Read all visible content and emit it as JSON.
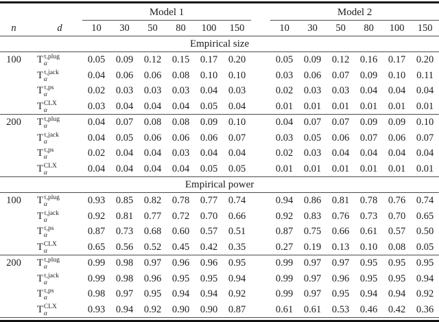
{
  "table": {
    "group_headers": [
      {
        "label": "Model 1"
      },
      {
        "label": "Model 2"
      }
    ],
    "col_headers": {
      "n": "n",
      "d": "d",
      "dims": [
        "10",
        "30",
        "50",
        "80",
        "100",
        "150"
      ]
    },
    "sections": [
      {
        "title": "Empirical size",
        "groups": [
          {
            "n": "100",
            "rows": [
              {
                "stat": {
                  "base": "T",
                  "sup": "τ,plug",
                  "sub": "α"
                },
                "m1": [
                  "0.05",
                  "0.09",
                  "0.12",
                  "0.15",
                  "0.17",
                  "0.20"
                ],
                "m2": [
                  "0.05",
                  "0.09",
                  "0.12",
                  "0.16",
                  "0.17",
                  "0.20"
                ]
              },
              {
                "stat": {
                  "base": "T",
                  "sup": "τ,jack",
                  "sub": "α"
                },
                "m1": [
                  "0.04",
                  "0.06",
                  "0.06",
                  "0.08",
                  "0.10",
                  "0.10"
                ],
                "m2": [
                  "0.03",
                  "0.06",
                  "0.07",
                  "0.09",
                  "0.10",
                  "0.11"
                ]
              },
              {
                "stat": {
                  "base": "T",
                  "sup": "τ,ps",
                  "sub": "α"
                },
                "m1": [
                  "0.02",
                  "0.03",
                  "0.03",
                  "0.03",
                  "0.04",
                  "0.03"
                ],
                "m2": [
                  "0.02",
                  "0.03",
                  "0.03",
                  "0.04",
                  "0.04",
                  "0.04"
                ]
              },
              {
                "stat": {
                  "base": "T",
                  "sup": "CLX",
                  "sub": "α"
                },
                "m1": [
                  "0.03",
                  "0.04",
                  "0.04",
                  "0.04",
                  "0.05",
                  "0.04"
                ],
                "m2": [
                  "0.01",
                  "0.01",
                  "0.01",
                  "0.01",
                  "0.01",
                  "0.01"
                ]
              }
            ]
          },
          {
            "n": "200",
            "rows": [
              {
                "stat": {
                  "base": "T",
                  "sup": "τ,plug",
                  "sub": "α"
                },
                "m1": [
                  "0.04",
                  "0.07",
                  "0.08",
                  "0.08",
                  "0.09",
                  "0.10"
                ],
                "m2": [
                  "0.04",
                  "0.07",
                  "0.07",
                  "0.09",
                  "0.09",
                  "0.10"
                ]
              },
              {
                "stat": {
                  "base": "T",
                  "sup": "τ,jack",
                  "sub": "α"
                },
                "m1": [
                  "0.04",
                  "0.05",
                  "0.06",
                  "0.06",
                  "0.06",
                  "0.07"
                ],
                "m2": [
                  "0.03",
                  "0.05",
                  "0.06",
                  "0.07",
                  "0.06",
                  "0.07"
                ]
              },
              {
                "stat": {
                  "base": "T",
                  "sup": "τ,ps",
                  "sub": "α"
                },
                "m1": [
                  "0.02",
                  "0.04",
                  "0.04",
                  "0.03",
                  "0.04",
                  "0.04"
                ],
                "m2": [
                  "0.02",
                  "0.03",
                  "0.04",
                  "0.04",
                  "0.04",
                  "0.04"
                ]
              },
              {
                "stat": {
                  "base": "T",
                  "sup": "CLX",
                  "sub": "α"
                },
                "m1": [
                  "0.04",
                  "0.04",
                  "0.04",
                  "0.04",
                  "0.05",
                  "0.05"
                ],
                "m2": [
                  "0.01",
                  "0.01",
                  "0.01",
                  "0.01",
                  "0.01",
                  "0.01"
                ]
              }
            ]
          }
        ]
      },
      {
        "title": "Empirical power",
        "groups": [
          {
            "n": "100",
            "rows": [
              {
                "stat": {
                  "base": "T",
                  "sup": "τ,plug",
                  "sub": "α"
                },
                "m1": [
                  "0.93",
                  "0.85",
                  "0.82",
                  "0.78",
                  "0.77",
                  "0.74"
                ],
                "m2": [
                  "0.94",
                  "0.86",
                  "0.81",
                  "0.78",
                  "0.76",
                  "0.74"
                ]
              },
              {
                "stat": {
                  "base": "T",
                  "sup": "τ,jack",
                  "sub": "α"
                },
                "m1": [
                  "0.92",
                  "0.81",
                  "0.77",
                  "0.72",
                  "0.70",
                  "0.66"
                ],
                "m2": [
                  "0.92",
                  "0.83",
                  "0.76",
                  "0.73",
                  "0.70",
                  "0.65"
                ]
              },
              {
                "stat": {
                  "base": "T",
                  "sup": "τ,ps",
                  "sub": "α"
                },
                "m1": [
                  "0.87",
                  "0.73",
                  "0.68",
                  "0.60",
                  "0.57",
                  "0.51"
                ],
                "m2": [
                  "0.87",
                  "0.75",
                  "0.66",
                  "0.61",
                  "0.57",
                  "0.50"
                ]
              },
              {
                "stat": {
                  "base": "T",
                  "sup": "CLX",
                  "sub": "α"
                },
                "m1": [
                  "0.65",
                  "0.56",
                  "0.52",
                  "0.45",
                  "0.42",
                  "0.35"
                ],
                "m2": [
                  "0.27",
                  "0.19",
                  "0.13",
                  "0.10",
                  "0.08",
                  "0.05"
                ]
              }
            ]
          },
          {
            "n": "200",
            "rows": [
              {
                "stat": {
                  "base": "T",
                  "sup": "τ,plug",
                  "sub": "α"
                },
                "m1": [
                  "0.99",
                  "0.98",
                  "0.97",
                  "0.96",
                  "0.96",
                  "0.95"
                ],
                "m2": [
                  "0.99",
                  "0.97",
                  "0.97",
                  "0.95",
                  "0.95",
                  "0.95"
                ]
              },
              {
                "stat": {
                  "base": "T",
                  "sup": "τ,jack",
                  "sub": "α"
                },
                "m1": [
                  "0.99",
                  "0.98",
                  "0.96",
                  "0.95",
                  "0.95",
                  "0.94"
                ],
                "m2": [
                  "0.99",
                  "0.97",
                  "0.96",
                  "0.95",
                  "0.95",
                  "0.94"
                ]
              },
              {
                "stat": {
                  "base": "T",
                  "sup": "τ,ps",
                  "sub": "α"
                },
                "m1": [
                  "0.98",
                  "0.97",
                  "0.95",
                  "0.94",
                  "0.94",
                  "0.92"
                ],
                "m2": [
                  "0.99",
                  "0.97",
                  "0.95",
                  "0.94",
                  "0.94",
                  "0.92"
                ]
              },
              {
                "stat": {
                  "base": "T",
                  "sup": "CLX",
                  "sub": "α"
                },
                "m1": [
                  "0.93",
                  "0.94",
                  "0.92",
                  "0.90",
                  "0.90",
                  "0.87"
                ],
                "m2": [
                  "0.61",
                  "0.61",
                  "0.53",
                  "0.46",
                  "0.42",
                  "0.36"
                ]
              }
            ]
          }
        ]
      }
    ]
  }
}
